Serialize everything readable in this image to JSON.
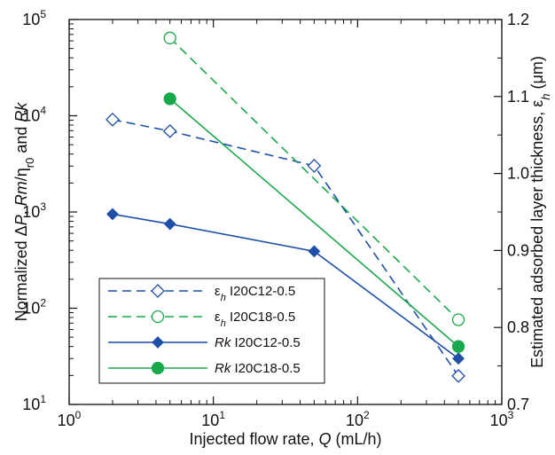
{
  "chart_data": {
    "type": "line",
    "x_axis": {
      "label_prefix": "Injected flow rate, ",
      "label_symbol": "Q",
      "label_suffix": " (mL/h)",
      "scale": "log",
      "range": [
        1,
        1000
      ],
      "ticks": [
        {
          "base": "10",
          "exp": "0",
          "value": 1
        },
        {
          "base": "10",
          "exp": "1",
          "value": 10
        },
        {
          "base": "10",
          "exp": "2",
          "value": 100
        },
        {
          "base": "10",
          "exp": "3",
          "value": 1000
        }
      ]
    },
    "y_left": {
      "label": "Normalized ΔP, Rm/ηr0 and Rk",
      "label_parts": [
        {
          "text": "Normalized ",
          "style": "normal",
          "shift": "none"
        },
        {
          "text": "Δ",
          "style": "normal",
          "shift": "none"
        },
        {
          "text": "P",
          "style": "italic",
          "shift": "none"
        },
        {
          "text": ", ",
          "style": "normal",
          "shift": "none"
        },
        {
          "text": "Rm",
          "style": "italic",
          "shift": "none"
        },
        {
          "text": "/η",
          "style": "normal",
          "shift": "none"
        },
        {
          "text": "r0",
          "style": "normal",
          "shift": "sub"
        },
        {
          "text": " and ",
          "style": "normal",
          "shift": "none"
        },
        {
          "text": "Rk",
          "style": "italic",
          "shift": "none"
        }
      ],
      "scale": "log",
      "range": [
        10,
        100000
      ],
      "ticks": [
        {
          "base": "10",
          "exp": "1",
          "value": 10
        },
        {
          "base": "10",
          "exp": "2",
          "value": 100
        },
        {
          "base": "10",
          "exp": "3",
          "value": 1000
        },
        {
          "base": "10",
          "exp": "4",
          "value": 10000
        },
        {
          "base": "10",
          "exp": "5",
          "value": 100000
        }
      ]
    },
    "y_right": {
      "label": "Estimated adsorbed layer thickness, εh (μm)",
      "label_parts": [
        {
          "text": "Estimated adsorbed layer thickness, ",
          "style": "normal",
          "shift": "none"
        },
        {
          "text": "ε",
          "style": "normal",
          "shift": "none"
        },
        {
          "text": "h",
          "style": "italic",
          "shift": "sub"
        },
        {
          "text": " (μm)",
          "style": "normal",
          "shift": "none"
        }
      ],
      "scale": "linear",
      "range": [
        0.7,
        1.2
      ],
      "ticks": [
        "0.7",
        "0.8",
        "0.9",
        "1.0",
        "1.1",
        "1.2"
      ],
      "minor_step": 0.05
    },
    "series": [
      {
        "name": "εh I20C12-0.5",
        "legend_symbol": "ε",
        "legend_sub": "h",
        "legend_suffix": " I20C12-0.5",
        "axis": "right",
        "marker": "diamond-open",
        "line": "dashed",
        "color": "#1f4fa8",
        "x": [
          2,
          5,
          50,
          500
        ],
        "y": [
          1.07,
          1.055,
          1.01,
          0.737
        ]
      },
      {
        "name": "εh I20C18-0.5",
        "legend_symbol": "ε",
        "legend_sub": "h",
        "legend_suffix": " I20C18-0.5",
        "axis": "right",
        "marker": "circle-open",
        "line": "dashed",
        "color": "#19a84a",
        "x": [
          5,
          500
        ],
        "y": [
          1.176,
          0.81
        ]
      },
      {
        "name": "Rk I20C12-0.5",
        "legend_symbol": "Rk",
        "legend_sub": "",
        "legend_suffix": " I20C12-0.5",
        "axis": "left",
        "marker": "diamond-filled",
        "line": "solid",
        "color": "#1f4fa8",
        "x": [
          2,
          5,
          50,
          500
        ],
        "y": [
          950,
          750,
          390,
          30
        ]
      },
      {
        "name": "Rk I20C18-0.5",
        "legend_symbol": "Rk",
        "legend_sub": "",
        "legend_suffix": " I20C18-0.5",
        "axis": "left",
        "marker": "circle-filled",
        "line": "solid",
        "color": "#19a84a",
        "x": [
          5,
          500
        ],
        "y": [
          15000,
          40
        ]
      }
    ],
    "legend_position": "bottom-left",
    "grid": false
  }
}
